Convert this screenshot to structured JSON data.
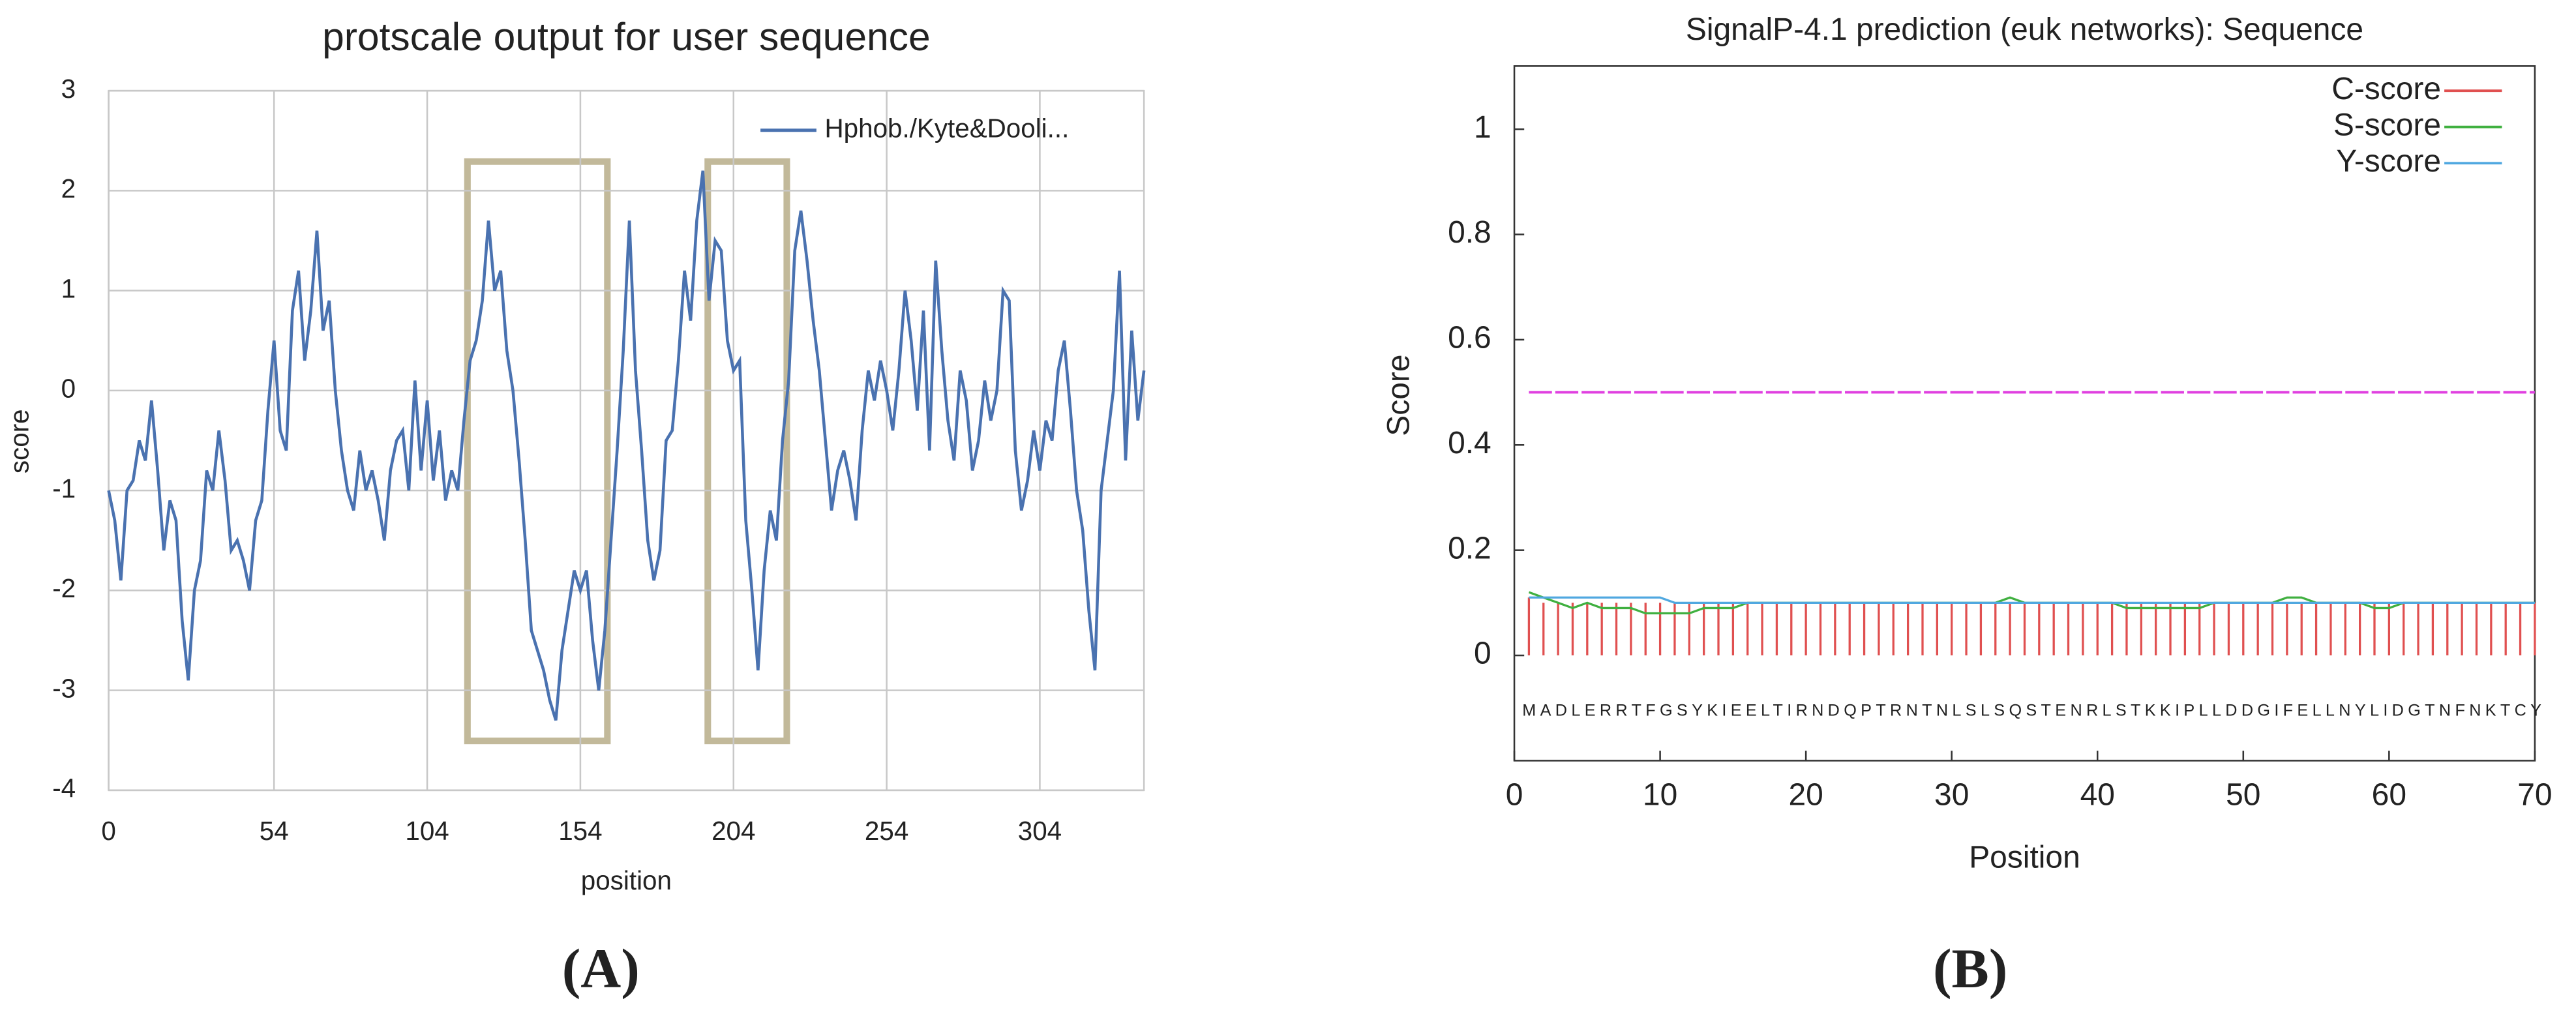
{
  "chart_data": [
    {
      "type": "line",
      "title": "protscale output for user sequence",
      "x_label": "position",
      "y_label": "score",
      "x": [
        0,
        2,
        4,
        6,
        8,
        10,
        12,
        14,
        16,
        18,
        20,
        22,
        24,
        26,
        28,
        30,
        32,
        34,
        36,
        38,
        40,
        42,
        44,
        46,
        48,
        50,
        52,
        54,
        56,
        58,
        60,
        62,
        64,
        66,
        68,
        70,
        72,
        74,
        76,
        78,
        80,
        82,
        84,
        86,
        88,
        90,
        92,
        94,
        96,
        98,
        100,
        102,
        104,
        106,
        108,
        110,
        112,
        114,
        116,
        118,
        120,
        122,
        124,
        126,
        128,
        130,
        132,
        134,
        136,
        138,
        140,
        142,
        144,
        146,
        148,
        150,
        152,
        154,
        156,
        158,
        160,
        162,
        164,
        166,
        168,
        170,
        172,
        174,
        176,
        178,
        180,
        182,
        184,
        186,
        188,
        190,
        192,
        194,
        196,
        198,
        200,
        202,
        204,
        206,
        208,
        210,
        212,
        214,
        216,
        218,
        220,
        222,
        224,
        226,
        228,
        230,
        232,
        234,
        236,
        238,
        240,
        242,
        244,
        246,
        248,
        250,
        252,
        254,
        256,
        258,
        260,
        262,
        264,
        266,
        268,
        270,
        272,
        274,
        276,
        278,
        280,
        282,
        284,
        286,
        288,
        290,
        292,
        294,
        296,
        298,
        300,
        302,
        304,
        306,
        308,
        310,
        312,
        314,
        316,
        318,
        320,
        322,
        324,
        326,
        328,
        330,
        332,
        334,
        336,
        338
      ],
      "series": [
        {
          "name": "Hphob./Kyte&Dooli...",
          "color": "#4a72b0",
          "values": [
            -1.0,
            -1.3,
            -1.9,
            -1.0,
            -0.9,
            -0.5,
            -0.7,
            -0.1,
            -0.8,
            -1.6,
            -1.1,
            -1.3,
            -2.3,
            -2.9,
            -2.0,
            -1.7,
            -0.8,
            -1.0,
            -0.4,
            -0.9,
            -1.6,
            -1.5,
            -1.7,
            -2.0,
            -1.3,
            -1.1,
            -0.2,
            0.5,
            -0.4,
            -0.6,
            0.8,
            1.2,
            0.3,
            0.8,
            1.6,
            0.6,
            0.9,
            0.0,
            -0.6,
            -1.0,
            -1.2,
            -0.6,
            -1.0,
            -0.8,
            -1.1,
            -1.5,
            -0.8,
            -0.5,
            -0.4,
            -1.0,
            0.1,
            -0.8,
            -0.1,
            -0.9,
            -0.4,
            -1.1,
            -0.8,
            -1.0,
            -0.3,
            0.3,
            0.5,
            0.9,
            1.7,
            1.0,
            1.2,
            0.4,
            0.0,
            -0.7,
            -1.5,
            -2.4,
            -2.6,
            -2.8,
            -3.1,
            -3.3,
            -2.6,
            -2.2,
            -1.8,
            -2.0,
            -1.8,
            -2.5,
            -3.0,
            -2.4,
            -1.5,
            -0.6,
            0.4,
            1.7,
            0.2,
            -0.6,
            -1.5,
            -1.9,
            -1.6,
            -0.5,
            -0.4,
            0.3,
            1.2,
            0.7,
            1.7,
            2.2,
            0.9,
            1.5,
            1.4,
            0.5,
            0.2,
            0.3,
            -1.3,
            -2.0,
            -2.8,
            -1.8,
            -1.2,
            -1.5,
            -0.5,
            0.1,
            1.4,
            1.8,
            1.3,
            0.7,
            0.2,
            -0.5,
            -1.2,
            -0.8,
            -0.6,
            -0.9,
            -1.3,
            -0.4,
            0.2,
            -0.1,
            0.3,
            0.0,
            -0.4,
            0.2,
            1.0,
            0.5,
            -0.2,
            0.8,
            -0.6,
            1.3,
            0.4,
            -0.3,
            -0.7,
            0.2,
            -0.1,
            -0.8,
            -0.5,
            0.1,
            -0.3,
            0.0,
            1.0,
            0.9,
            -0.6,
            -1.2,
            -0.9,
            -0.4,
            -0.8,
            -0.3,
            -0.5,
            0.2,
            0.5,
            -0.2,
            -1.0,
            -1.4,
            -2.2,
            -2.8,
            -1.0,
            -0.5,
            0.0,
            1.2,
            -0.7,
            0.6,
            -0.3,
            0.2
          ]
        }
      ],
      "xlim": [
        0,
        338
      ],
      "xticks": [
        0,
        54,
        104,
        154,
        204,
        254,
        304
      ],
      "ylim": [
        -4,
        3
      ],
      "yticks": [
        -4,
        -3,
        -2,
        -1,
        0,
        1,
        2,
        3
      ],
      "grid": true,
      "legend": "top-right"
    },
    {
      "type": "signalp",
      "title": "SignalP-4.1 prediction (euk networks): Sequence",
      "x_label": "Position",
      "y_label": "Score",
      "x": [
        1,
        2,
        3,
        4,
        5,
        6,
        7,
        8,
        9,
        10,
        11,
        12,
        13,
        14,
        15,
        16,
        17,
        18,
        19,
        20,
        21,
        22,
        23,
        24,
        25,
        26,
        27,
        28,
        29,
        30,
        31,
        32,
        33,
        34,
        35,
        36,
        37,
        38,
        39,
        40,
        41,
        42,
        43,
        44,
        45,
        46,
        47,
        48,
        49,
        50,
        51,
        52,
        53,
        54,
        55,
        56,
        57,
        58,
        59,
        60,
        61,
        62,
        63,
        64,
        65,
        66,
        67,
        68,
        69,
        70
      ],
      "sequence": "MADLERRTFGSYKIEELTIRNDQPTRNTNLSLSQSTENRLSTKKIPLLDDGIFELLNYLIDGTNFNKTCY",
      "series": [
        {
          "name": "C-score",
          "color": "#e05050",
          "style": "impulse",
          "values": [
            0.11,
            0.1,
            0.1,
            0.1,
            0.1,
            0.1,
            0.1,
            0.1,
            0.1,
            0.1,
            0.1,
            0.1,
            0.1,
            0.1,
            0.1,
            0.1,
            0.1,
            0.1,
            0.1,
            0.1,
            0.1,
            0.1,
            0.1,
            0.1,
            0.1,
            0.1,
            0.1,
            0.1,
            0.1,
            0.1,
            0.1,
            0.1,
            0.1,
            0.1,
            0.1,
            0.1,
            0.1,
            0.1,
            0.1,
            0.1,
            0.1,
            0.1,
            0.1,
            0.1,
            0.1,
            0.1,
            0.1,
            0.1,
            0.1,
            0.1,
            0.1,
            0.1,
            0.1,
            0.1,
            0.1,
            0.1,
            0.1,
            0.1,
            0.1,
            0.1,
            0.1,
            0.1,
            0.1,
            0.1,
            0.1,
            0.1,
            0.1,
            0.1,
            0.1,
            0.1
          ]
        },
        {
          "name": "S-score",
          "color": "#40b040",
          "style": "line",
          "values": [
            0.12,
            0.11,
            0.1,
            0.09,
            0.1,
            0.09,
            0.09,
            0.09,
            0.08,
            0.08,
            0.08,
            0.08,
            0.09,
            0.09,
            0.09,
            0.1,
            0.1,
            0.1,
            0.1,
            0.1,
            0.1,
            0.1,
            0.1,
            0.1,
            0.1,
            0.1,
            0.1,
            0.1,
            0.1,
            0.1,
            0.1,
            0.1,
            0.1,
            0.11,
            0.1,
            0.1,
            0.1,
            0.1,
            0.1,
            0.1,
            0.1,
            0.09,
            0.09,
            0.09,
            0.09,
            0.09,
            0.09,
            0.1,
            0.1,
            0.1,
            0.1,
            0.1,
            0.11,
            0.11,
            0.1,
            0.1,
            0.1,
            0.1,
            0.09,
            0.09,
            0.1,
            0.1,
            0.1,
            0.1,
            0.1,
            0.1,
            0.1,
            0.1,
            0.1,
            0.1
          ]
        },
        {
          "name": "Y-score",
          "color": "#50a8e0",
          "style": "line",
          "values": [
            0.11,
            0.11,
            0.11,
            0.11,
            0.11,
            0.11,
            0.11,
            0.11,
            0.11,
            0.11,
            0.1,
            0.1,
            0.1,
            0.1,
            0.1,
            0.1,
            0.1,
            0.1,
            0.1,
            0.1,
            0.1,
            0.1,
            0.1,
            0.1,
            0.1,
            0.1,
            0.1,
            0.1,
            0.1,
            0.1,
            0.1,
            0.1,
            0.1,
            0.1,
            0.1,
            0.1,
            0.1,
            0.1,
            0.1,
            0.1,
            0.1,
            0.1,
            0.1,
            0.1,
            0.1,
            0.1,
            0.1,
            0.1,
            0.1,
            0.1,
            0.1,
            0.1,
            0.1,
            0.1,
            0.1,
            0.1,
            0.1,
            0.1,
            0.1,
            0.1,
            0.1,
            0.1,
            0.1,
            0.1,
            0.1,
            0.1,
            0.1,
            0.1,
            0.1,
            0.1
          ]
        }
      ],
      "threshold": {
        "value": 0.5,
        "color": "#e040e0"
      },
      "xlim": [
        0,
        70
      ],
      "xticks": [
        0,
        10,
        20,
        30,
        40,
        50,
        60,
        70
      ],
      "ylim": [
        -0.2,
        1.12
      ],
      "yticks": [
        0,
        0.2,
        0.4,
        0.6,
        0.8,
        1.0
      ],
      "grid": false,
      "legend": "top-right"
    }
  ],
  "panel_labels": [
    "(A)",
    "(B)"
  ]
}
